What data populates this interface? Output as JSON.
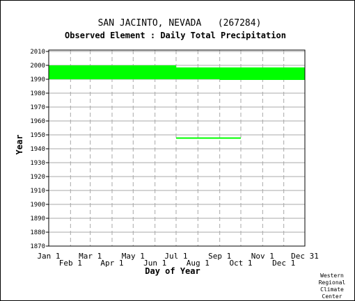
{
  "chart_data": {
    "type": "scatter",
    "title": "SAN JACINTO, NEVADA   (267284)",
    "subtitle": "Observed Element : Daily Total Precipitation",
    "xlabel": "Day of Year",
    "ylabel": "Year",
    "xlim": [
      1,
      365
    ],
    "ylim": [
      1870,
      2011
    ],
    "grid": true,
    "y_ticks": [
      1870,
      1880,
      1890,
      1900,
      1910,
      1920,
      1930,
      1940,
      1950,
      1960,
      1970,
      1980,
      1990,
      2000,
      2010
    ],
    "x_ticks_upper": [
      {
        "label": "Jan 1",
        "day": 1
      },
      {
        "label": "Mar 1",
        "day": 60
      },
      {
        "label": "May 1",
        "day": 121
      },
      {
        "label": "Jul 1",
        "day": 182
      },
      {
        "label": "Sep 1",
        "day": 244
      },
      {
        "label": "Nov 1",
        "day": 305
      },
      {
        "label": "Dec 31",
        "day": 365
      }
    ],
    "x_ticks_lower": [
      {
        "label": "Feb 1",
        "day": 32
      },
      {
        "label": "Apr 1",
        "day": 91
      },
      {
        "label": "Jun 1",
        "day": 152
      },
      {
        "label": "Aug 1",
        "day": 213
      },
      {
        "label": "Oct 1",
        "day": 274
      },
      {
        "label": "Dec 1",
        "day": 335
      }
    ],
    "series_color": "#00ff00",
    "coverage": [
      {
        "from_day": 1,
        "to_day": 365,
        "from_year": 1990,
        "to_year": 1998.5
      },
      {
        "from_day": 1,
        "to_day": 182,
        "from_year": 1998.5,
        "to_year": 2000
      },
      {
        "from_day": 182,
        "to_day": 244,
        "from_year": 1990,
        "to_year": 1998
      },
      {
        "from_day": 244,
        "to_day": 365,
        "from_year": 1989.5,
        "to_year": 1998.5
      },
      {
        "from_day": 182,
        "to_day": 274,
        "from_year": 1947.8,
        "to_year": 1948.2
      }
    ]
  },
  "credit": [
    "Western",
    "Regional",
    "Climate",
    "Center"
  ]
}
